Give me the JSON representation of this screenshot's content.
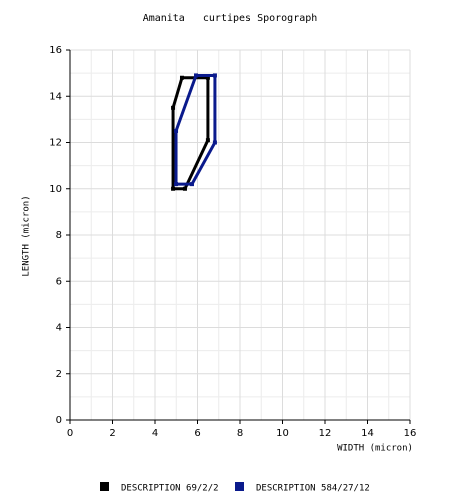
{
  "chart_data": {
    "type": "polygon",
    "title": "Amanita   curtipes Sporograph",
    "x_label": "WIDTH (micron)",
    "y_label": "LENGTH (micron)",
    "xlim": [
      0,
      16
    ],
    "ylim": [
      0,
      16
    ],
    "xticks": [
      0,
      2,
      4,
      6,
      8,
      10,
      12,
      14,
      16
    ],
    "yticks": [
      0,
      2,
      4,
      6,
      8,
      10,
      12,
      14,
      16
    ],
    "grid": true,
    "series": [
      {
        "name": "DESCRIPTION 69/2/2",
        "color": "#000000",
        "x": [
          4.85,
          4.85,
          5.27,
          6.49,
          6.49,
          5.41
        ],
        "values": [
          10.0,
          13.5,
          14.8,
          14.8,
          12.1,
          10.0
        ]
      },
      {
        "name": "DESCRIPTION 584/27/12",
        "color": "#0a1a8c",
        "x": [
          4.99,
          5.93,
          6.82,
          6.82,
          5.74,
          4.99
        ],
        "values": [
          12.5,
          14.9,
          14.9,
          12.0,
          10.2,
          10.2
        ]
      }
    ]
  }
}
